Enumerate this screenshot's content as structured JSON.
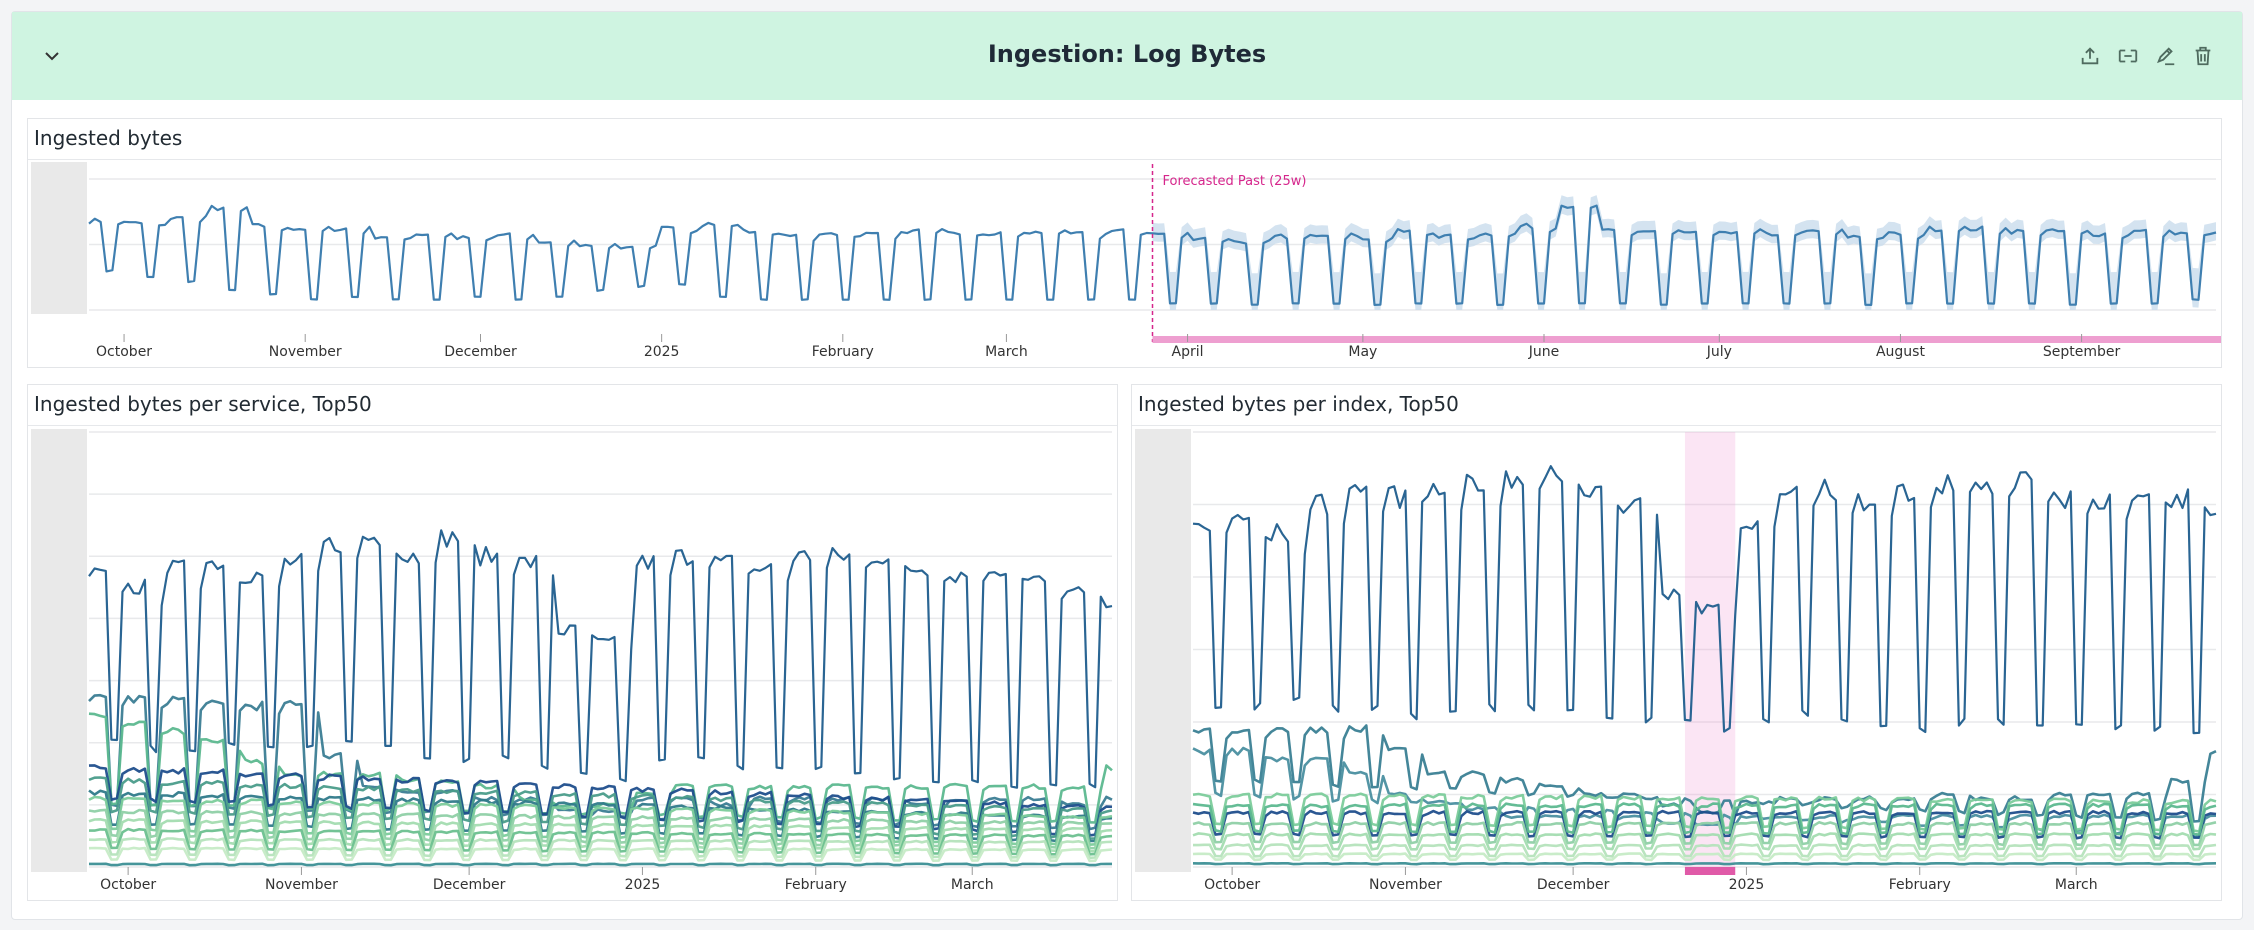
{
  "header": {
    "title": "Ingestion: Log Bytes",
    "background": "#cff4e1",
    "icons": [
      "chevron-down-icon",
      "export-icon",
      "embed-icon",
      "edit-icon",
      "trash-icon"
    ]
  },
  "colors": {
    "forecast": "#d6268c",
    "highlight": "#e05aa8",
    "main_line": "#3f7fb0",
    "band": "#c9dcec"
  },
  "chart_data": [
    {
      "id": "ingested-bytes",
      "title": "Ingested bytes",
      "type": "line",
      "grid": true,
      "y_axis_labels_visible": false,
      "ylim": [
        0,
        100
      ],
      "x_range": [
        "2024-09-25",
        "2025-09-24"
      ],
      "x_ticks": [
        {
          "label": "October",
          "date": "2024-10-01"
        },
        {
          "label": "November",
          "date": "2024-11-01"
        },
        {
          "label": "December",
          "date": "2024-12-01"
        },
        {
          "label": "2025",
          "date": "2025-01-01"
        },
        {
          "label": "February",
          "date": "2025-02-01"
        },
        {
          "label": "March",
          "date": "2025-03-01"
        },
        {
          "label": "April",
          "date": "2025-04-01"
        },
        {
          "label": "May",
          "date": "2025-05-01"
        },
        {
          "label": "June",
          "date": "2025-06-01"
        },
        {
          "label": "July",
          "date": "2025-07-01"
        },
        {
          "label": "August",
          "date": "2025-08-01"
        },
        {
          "label": "September",
          "date": "2025-09-01"
        }
      ],
      "forecast": {
        "label": "Forecasted Past (25w)",
        "start": "2025-03-26",
        "band_margin_above": 8,
        "band_margin_below": 6
      },
      "series": [
        {
          "color": "#3f7fb0",
          "weekday_level": [
            68,
            66,
            70,
            78,
            64,
            62,
            62,
            56,
            58,
            55,
            57,
            52,
            50,
            48,
            62,
            66,
            60,
            56,
            58,
            58,
            60,
            58,
            58,
            59,
            58,
            60,
            58,
            55,
            52,
            56,
            58,
            55,
            60,
            56,
            58,
            64,
            80,
            60,
            60,
            58,
            60,
            58,
            60,
            56,
            58,
            62,
            62,
            60,
            60,
            58,
            60,
            58
          ],
          "weekend_level": [
            30,
            25,
            22,
            15,
            12,
            8,
            10,
            8,
            8,
            10,
            8,
            10,
            15,
            18,
            20,
            10,
            8,
            8,
            8,
            8,
            8,
            8,
            8,
            8,
            8,
            8,
            5,
            5,
            4,
            5,
            5,
            4,
            5,
            5,
            4,
            5,
            5,
            5,
            4,
            5,
            5,
            5,
            5,
            4,
            5,
            5,
            5,
            5,
            4,
            5,
            5,
            8
          ]
        }
      ]
    },
    {
      "id": "per-service",
      "title": "Ingested bytes per service, Top50",
      "type": "line",
      "grid": true,
      "y_axis_labels_visible": false,
      "ylim": [
        0,
        7
      ],
      "x_range": [
        "2024-09-24",
        "2025-03-26"
      ],
      "x_ticks": [
        {
          "label": "October",
          "date": "2024-10-01"
        },
        {
          "label": "November",
          "date": "2024-11-01"
        },
        {
          "label": "December",
          "date": "2024-12-01"
        },
        {
          "label": "2025",
          "date": "2025-01-01"
        },
        {
          "label": "February",
          "date": "2025-02-01"
        },
        {
          "label": "March",
          "date": "2025-03-01"
        }
      ],
      "series": [
        {
          "color": "#2a6593",
          "weekday_level": [
            4.7,
            4.5,
            4.8,
            4.9,
            4.7,
            4.9,
            5.2,
            5.3,
            5.0,
            5.3,
            5.0,
            4.9,
            3.8,
            3.6,
            4.9,
            5.0,
            4.9,
            4.8,
            5.0,
            5.0,
            5.0,
            4.8,
            4.7,
            4.8,
            4.6,
            4.4,
            4.3
          ],
          "weekend_level": [
            2.0,
            1.9,
            1.9,
            2.0,
            1.9,
            1.9,
            2.0,
            2.0,
            1.8,
            1.7,
            1.8,
            1.6,
            1.5,
            1.4,
            1.7,
            1.8,
            1.6,
            1.6,
            1.6,
            1.5,
            1.4,
            1.4,
            1.4,
            1.3,
            1.3,
            1.3,
            1.3
          ]
        },
        {
          "color": "#3b7d93",
          "weekday_level": [
            2.7,
            2.7,
            2.7,
            2.6,
            2.6,
            2.6,
            1.8,
            1.3,
            1.2,
            1.2,
            1.1,
            1.1,
            0.9,
            0.9,
            1.1,
            1.1,
            1.0,
            1.1,
            1.1,
            1.1,
            1.1,
            1.0,
            1.1,
            1.1,
            1.1,
            1.0,
            1.1
          ],
          "weekend_level": [
            1.0,
            0.6
          ]
        },
        {
          "color": "#5cb88f",
          "weekday_level": [
            2.4,
            2.3,
            2.2,
            2.0,
            1.7,
            1.5,
            1.5,
            1.5,
            1.4,
            1.4,
            1.3,
            1.1,
            1.0,
            1.0,
            1.2,
            1.3,
            1.3,
            1.3,
            1.3,
            1.3,
            1.3,
            1.3,
            1.3,
            1.3,
            1.3,
            1.3,
            1.6
          ],
          "weekend_level": [
            1.0,
            0.7
          ]
        },
        {
          "color": "#1f4e8c",
          "weekday_level": [
            1.6,
            0.95
          ],
          "weekend_level": [
            1.1,
            0.5
          ]
        },
        {
          "color": "#4a9c8a",
          "weekday_level": [
            1.4,
            0.9
          ],
          "weekend_level": [
            0.9,
            0.45
          ]
        },
        {
          "color": "#2f7a8a",
          "weekday_level": [
            1.2,
            0.8
          ],
          "weekend_level": [
            0.7,
            0.4
          ]
        },
        {
          "color": "#7ccc9b",
          "weekday_level": [
            1.1,
            0.8
          ],
          "weekend_level": [
            0.6,
            0.35
          ]
        },
        {
          "color": "#8fd0a6",
          "weekday_level": [
            0.9,
            0.7
          ],
          "weekend_level": [
            0.5,
            0.3
          ]
        },
        {
          "color": "#a3dcb0",
          "weekday_level": [
            0.75,
            0.6
          ],
          "weekend_level": [
            0.4,
            0.25
          ]
        },
        {
          "color": "#6cc08f",
          "weekday_level": [
            0.6,
            0.5
          ],
          "weekend_level": [
            0.3,
            0.2
          ]
        },
        {
          "color": "#b5e3bc",
          "weekday_level": [
            0.45,
            0.4
          ],
          "weekend_level": [
            0.2,
            0.15
          ]
        },
        {
          "color": "#c6ebc6",
          "weekday_level": [
            0.3,
            0.28
          ],
          "weekend_level": [
            0.12,
            0.1
          ]
        },
        {
          "color": "#3c8f95",
          "weekday_level": [
            0.05,
            0.05
          ],
          "weekend_level": [
            0.03,
            0.03
          ]
        }
      ]
    },
    {
      "id": "per-index",
      "title": "Ingested bytes per index, Top50",
      "type": "line",
      "grid": true,
      "y_axis_labels_visible": false,
      "ylim": [
        0,
        6
      ],
      "x_range": [
        "2024-09-24",
        "2025-03-26"
      ],
      "x_ticks": [
        {
          "label": "October",
          "date": "2024-10-01"
        },
        {
          "label": "November",
          "date": "2024-11-01"
        },
        {
          "label": "December",
          "date": "2024-12-01"
        },
        {
          "label": "2025",
          "date": "2025-01-01"
        },
        {
          "label": "February",
          "date": "2025-02-01"
        },
        {
          "label": "March",
          "date": "2025-03-01"
        }
      ],
      "highlight": {
        "start": "2024-12-21",
        "end": "2024-12-30"
      },
      "series": [
        {
          "color": "#2a6593",
          "weekday_level": [
            4.7,
            4.8,
            4.6,
            5.0,
            5.2,
            5.1,
            5.2,
            5.3,
            5.3,
            5.4,
            5.2,
            5.0,
            3.8,
            3.6,
            4.8,
            5.1,
            5.2,
            5.0,
            5.2,
            5.3,
            5.2,
            5.3,
            5.1,
            5.0,
            5.2,
            5.1,
            4.8
          ],
          "weekend_level": [
            2.2,
            2.2,
            2.3,
            2.2,
            2.2,
            2.1,
            2.2,
            2.2,
            2.2,
            2.2,
            2.1,
            2.0,
            2.0,
            1.9,
            2.0,
            2.1,
            2.0,
            2.0,
            1.9,
            2.0,
            2.0,
            1.9,
            2.0,
            1.9,
            1.9,
            1.8,
            1.9
          ]
        },
        {
          "color": "#3a7f94",
          "weekday_level": [
            1.9,
            1.9,
            1.9,
            1.9,
            1.9,
            1.6,
            1.3,
            1.3,
            1.2,
            1.1,
            1.0,
            1.0,
            0.85,
            0.75,
            0.9,
            0.95,
            0.95,
            0.95,
            0.95,
            1.0,
            0.95,
            0.95,
            1.0,
            1.0,
            1.0,
            1.2,
            1.6
          ],
          "weekend_level": [
            1.2,
            0.6
          ]
        },
        {
          "color": "#4a8fa0",
          "weekday_level": [
            1.6,
            1.6,
            1.5,
            1.5,
            1.3,
            1.0,
            0.9,
            0.8,
            0.7,
            0.7,
            0.7,
            0.7,
            0.6,
            0.6,
            0.7,
            0.7,
            0.7,
            0.7,
            0.7,
            0.7,
            0.7,
            0.7,
            0.7,
            0.7,
            0.7,
            0.7,
            0.7
          ],
          "weekend_level": [
            1.0,
            0.4
          ]
        },
        {
          "color": "#7ccc9b",
          "weekday_level": [
            1.0,
            0.9
          ],
          "weekend_level": [
            0.6,
            0.5
          ]
        },
        {
          "color": "#1f4e8c",
          "weekday_level": [
            0.75,
            0.75
          ],
          "weekend_level": [
            0.45,
            0.4
          ]
        },
        {
          "color": "#5cb88f",
          "weekday_level": [
            0.85,
            0.85
          ],
          "weekend_level": [
            0.5,
            0.45
          ]
        },
        {
          "color": "#8fd0a6",
          "weekday_level": [
            0.6,
            0.6
          ],
          "weekend_level": [
            0.35,
            0.3
          ]
        },
        {
          "color": "#a3dcb0",
          "weekday_level": [
            0.45,
            0.45
          ],
          "weekend_level": [
            0.25,
            0.25
          ]
        },
        {
          "color": "#b5e3bc",
          "weekday_level": [
            0.3,
            0.3
          ],
          "weekend_level": [
            0.15,
            0.15
          ]
        },
        {
          "color": "#c6ebc6",
          "weekday_level": [
            0.18,
            0.18
          ],
          "weekend_level": [
            0.1,
            0.1
          ]
        },
        {
          "color": "#3c8f95",
          "weekday_level": [
            0.05,
            0.05
          ],
          "weekend_level": [
            0.04,
            0.04
          ]
        }
      ]
    }
  ]
}
